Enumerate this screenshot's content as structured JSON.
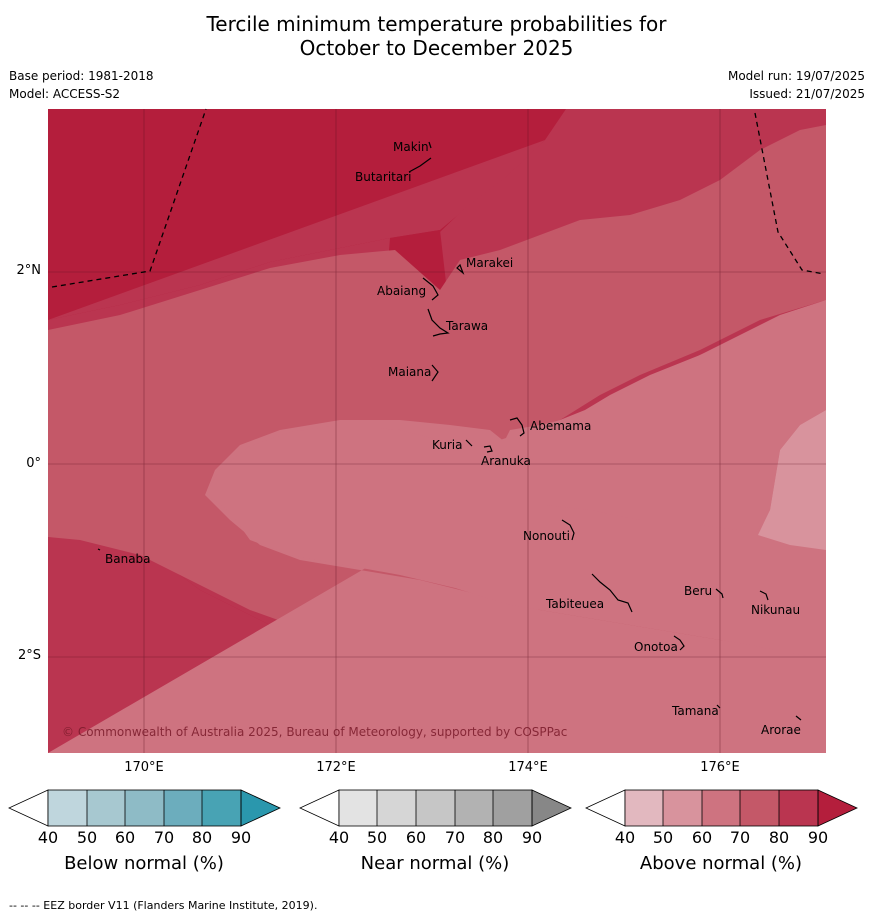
{
  "title_line1": "Tercile minimum temperature probabilities for",
  "title_line2": "October to December 2025",
  "base_period": "Base period: 1981-2018",
  "model": "Model: ACCESS-S2",
  "model_run": "Model run: 19/07/2025",
  "issued": "Issued: 21/07/2025",
  "copyright": "© Commonwealth of Australia 2025, Bureau of Meteorology, supported by COSPPac",
  "footnote": "--  --  -- EEZ border V11 (Flanders Marine Institute, 2019).",
  "lon_labels": [
    "170°E",
    "172°E",
    "174°E",
    "176°E"
  ],
  "lat_labels": [
    "2°N",
    "0°",
    "2°S"
  ],
  "islands": [
    {
      "name": "Makin"
    },
    {
      "name": "Butaritari"
    },
    {
      "name": "Marakei"
    },
    {
      "name": "Abaiang"
    },
    {
      "name": "Tarawa"
    },
    {
      "name": "Maiana"
    },
    {
      "name": "Abemama"
    },
    {
      "name": "Kuria"
    },
    {
      "name": "Aranuka"
    },
    {
      "name": "Nonouti"
    },
    {
      "name": "Banaba"
    },
    {
      "name": "Beru"
    },
    {
      "name": "Tabiteuea"
    },
    {
      "name": "Nikunau"
    },
    {
      "name": "Onotoa"
    },
    {
      "name": "Tamana"
    },
    {
      "name": "Arorae"
    }
  ],
  "colorbars": [
    {
      "title": "Below normal (%)",
      "ticks": [
        "40",
        "50",
        "60",
        "70",
        "80",
        "90"
      ],
      "colors": [
        "#bfd6dd",
        "#a7c8d0",
        "#8ebbc6",
        "#6cadbd",
        "#48a3b4",
        "#2a97ad"
      ]
    },
    {
      "title": "Near normal (%)",
      "ticks": [
        "40",
        "50",
        "60",
        "70",
        "80",
        "90"
      ],
      "colors": [
        "#e3e3e3",
        "#d6d6d6",
        "#c6c6c6",
        "#b2b2b2",
        "#a0a0a0",
        "#878787"
      ]
    },
    {
      "title": "Above normal (%)",
      "ticks": [
        "40",
        "50",
        "60",
        "70",
        "80",
        "90"
      ],
      "colors": [
        "#e2b8bf",
        "#d8939d",
        "#ce7380",
        "#c45868",
        "#ba3550",
        "#b41e3c"
      ]
    }
  ],
  "map_colors": {
    "above_90": "#b41e3c",
    "above_80": "#ba3550",
    "above_70": "#c45868",
    "above_60": "#ce7380",
    "above_50": "#d8939d"
  }
}
